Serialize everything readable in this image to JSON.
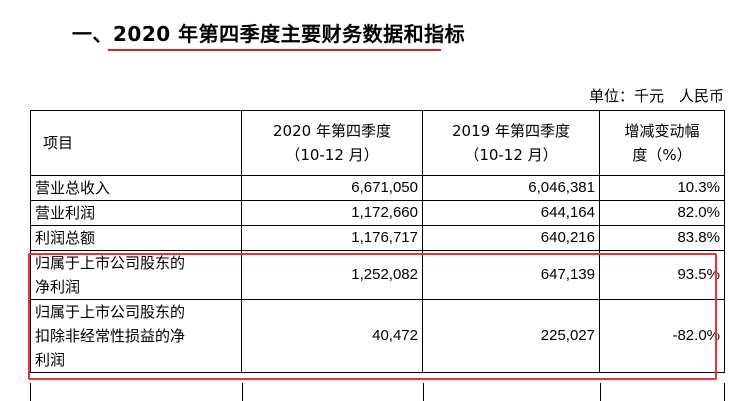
{
  "section": {
    "prefix": "一、",
    "title": "2020 年第四季度主要财务数据和指标"
  },
  "unit": "单位：千元　人民币",
  "table": {
    "headers": {
      "item": "项目",
      "q4_2020": [
        "2020 年第四季度",
        "（10-12 月）"
      ],
      "q4_2019": [
        "2019 年第四季度",
        "（10-12 月）"
      ],
      "change": [
        "增减变动幅",
        "度（%）"
      ]
    },
    "rows": [
      {
        "item": [
          "营业总收入"
        ],
        "q4_2020": "6,671,050",
        "q4_2019": "6,046,381",
        "change": "10.3%"
      },
      {
        "item": [
          "营业利润"
        ],
        "q4_2020": "1,172,660",
        "q4_2019": "644,164",
        "change": "82.0%"
      },
      {
        "item": [
          "利润总额"
        ],
        "q4_2020": "1,176,717",
        "q4_2019": "640,216",
        "change": "83.8%"
      },
      {
        "item": [
          "归属于上市公司股东的",
          "净利润"
        ],
        "q4_2020": "1,252,082",
        "q4_2019": "647,139",
        "change": "93.5%"
      },
      {
        "item": [
          "归属于上市公司股东的",
          "扣除非经常性损益的净",
          "利润"
        ],
        "q4_2020": "40,472",
        "q4_2019": "225,027",
        "change": "-82.0%"
      }
    ]
  },
  "colors": {
    "highlight": "#e8323c",
    "underline": "#e02020"
  }
}
